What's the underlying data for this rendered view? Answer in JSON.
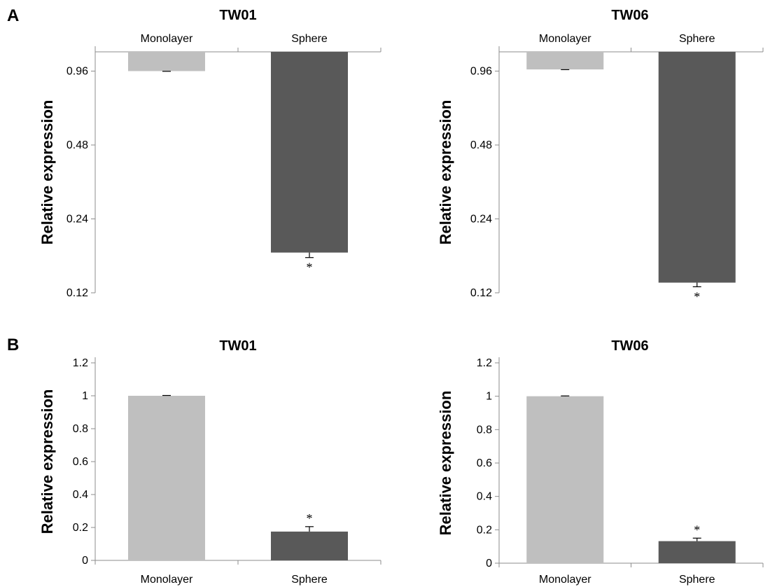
{
  "panel_labels": [
    "A",
    "B"
  ],
  "colors": {
    "monolayer": "#bfbfbf",
    "sphere": "#595959",
    "axis": "#8c8c8c",
    "error": "#000000"
  },
  "chart_data": [
    {
      "panel": "A",
      "type": "bar",
      "title": "TW01",
      "ylabel": "Relative expression",
      "yscale": "log2",
      "ylim": [
        0.12,
        1.15
      ],
      "yticks": [
        0.12,
        0.24,
        0.48,
        0.96
      ],
      "ytick_labels": [
        "0.12",
        "0.24",
        "0.48",
        "0.96"
      ],
      "baseline": 1.15,
      "categories": [
        "Monolayer",
        "Sphere"
      ],
      "category_axis": "top",
      "values": [
        0.96,
        0.175
      ],
      "errors": [
        0.002,
        0.008
      ],
      "significance": [
        "",
        "*"
      ]
    },
    {
      "panel": "A",
      "type": "bar",
      "title": "TW06",
      "ylabel": "Relative expression",
      "yscale": "log2",
      "ylim": [
        0.12,
        1.15
      ],
      "yticks": [
        0.12,
        0.24,
        0.48,
        0.96
      ],
      "ytick_labels": [
        "0.12",
        "0.24",
        "0.48",
        "0.96"
      ],
      "baseline": 1.15,
      "categories": [
        "Monolayer",
        "Sphere"
      ],
      "category_axis": "top",
      "values": [
        0.975,
        0.132
      ],
      "errors": [
        0.002,
        0.005
      ],
      "significance": [
        "",
        "*"
      ]
    },
    {
      "panel": "B",
      "type": "bar",
      "title": "TW01",
      "ylabel": "Relative expression",
      "yscale": "linear",
      "ylim": [
        0,
        1.2
      ],
      "yticks": [
        0,
        0.2,
        0.4,
        0.6,
        0.8,
        1,
        1.2
      ],
      "ytick_labels": [
        "0",
        "0.2",
        "0.4",
        "0.6",
        "0.8",
        "1",
        "1.2"
      ],
      "baseline": 0,
      "categories": [
        "Monolayer",
        "Sphere"
      ],
      "category_axis": "bottom",
      "values": [
        1.0,
        0.175
      ],
      "errors": [
        0.002,
        0.03
      ],
      "significance": [
        "",
        "*"
      ]
    },
    {
      "panel": "B",
      "type": "bar",
      "title": "TW06",
      "ylabel": "Relative expression",
      "yscale": "linear",
      "ylim": [
        0,
        1.2
      ],
      "yticks": [
        0,
        0.2,
        0.4,
        0.6,
        0.8,
        1,
        1.2
      ],
      "ytick_labels": [
        "0",
        "0.2",
        "0.4",
        "0.6",
        "0.8",
        "1",
        "1.2"
      ],
      "baseline": 0,
      "categories": [
        "Monolayer",
        "Sphere"
      ],
      "category_axis": "bottom",
      "values": [
        1.0,
        0.132
      ],
      "errors": [
        0.002,
        0.018
      ],
      "significance": [
        "",
        "*"
      ]
    }
  ]
}
